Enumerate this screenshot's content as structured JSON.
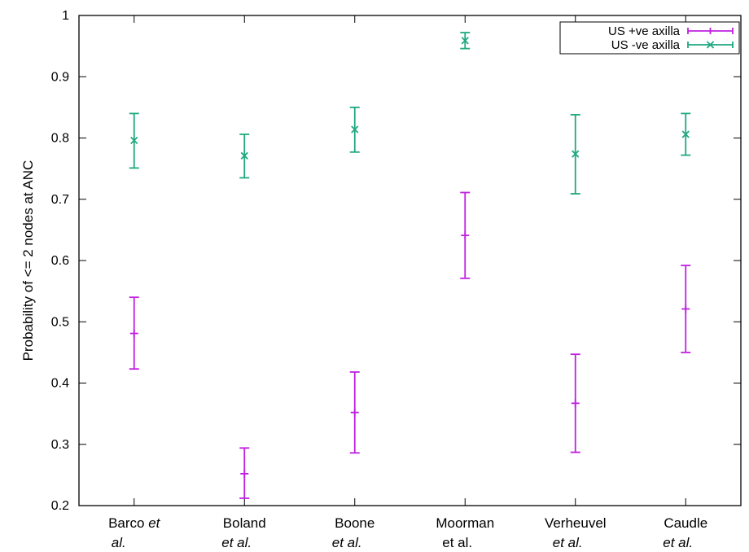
{
  "chart_data": {
    "type": "scatter",
    "ylabel": "Probability of <= 2 nodes at ANC",
    "xlabel": "",
    "ylim": [
      0.2,
      1.0
    ],
    "yticks": [
      0.2,
      0.3,
      0.4,
      0.5,
      0.6,
      0.7,
      0.8,
      0.9,
      1.0
    ],
    "ytick_labels": [
      "0.2",
      "0.3",
      "0.4",
      "0.5",
      "0.6",
      "0.7",
      "0.8",
      "0.9",
      "1"
    ],
    "categories": [
      {
        "line1": "Barco ",
        "line1_italic": "et",
        "line2": "al.",
        "line2_italic": true
      },
      {
        "line1": "Boland",
        "line1_italic": "",
        "line2": "et al.",
        "line2_italic": true
      },
      {
        "line1": "Boone",
        "line1_italic": "",
        "line2": "et al.",
        "line2_italic": true
      },
      {
        "line1": "Moorman",
        "line1_italic": "",
        "line2": "et al.",
        "line2_italic": false
      },
      {
        "line1": "Verheuvel",
        "line1_italic": "",
        "line2": "et al.",
        "line2_italic": true
      },
      {
        "line1": "Caudle",
        "line1_italic": "",
        "line2": "et al.",
        "line2_italic": true
      }
    ],
    "series": [
      {
        "name": "US +ve axilla",
        "color": "#c020e0",
        "marker": "plus",
        "values": [
          0.481,
          0.252,
          0.352,
          0.641,
          0.367,
          0.521
        ],
        "lower": [
          0.423,
          0.212,
          0.286,
          0.571,
          0.287,
          0.45
        ],
        "upper": [
          0.54,
          0.294,
          0.418,
          0.711,
          0.447,
          0.592
        ]
      },
      {
        "name": "US -ve axilla",
        "color": "#20a880",
        "marker": "x",
        "values": [
          0.796,
          0.771,
          0.814,
          0.959,
          0.774,
          0.806
        ],
        "lower": [
          0.751,
          0.735,
          0.777,
          0.946,
          0.709,
          0.772
        ],
        "upper": [
          0.84,
          0.806,
          0.85,
          0.972,
          0.838,
          0.84
        ]
      }
    ],
    "legend_position": "top-right",
    "grid": false
  }
}
